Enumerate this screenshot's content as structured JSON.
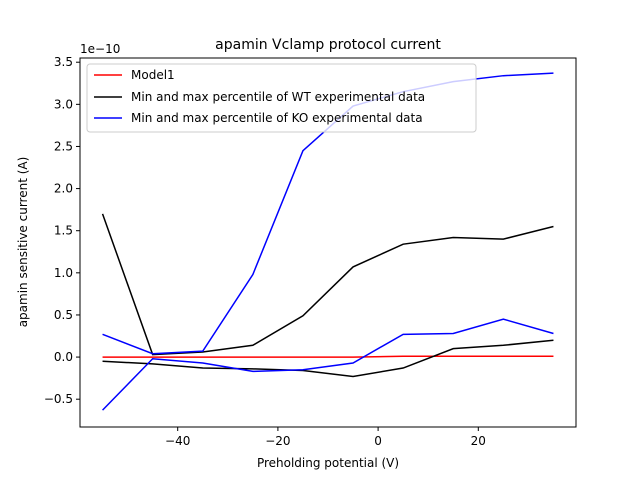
{
  "chart_data": {
    "type": "line",
    "title": "apamin Vclamp protocol current",
    "xlabel": "Preholding potential (V)",
    "ylabel": "apamin sensitive current (A)",
    "y_offset_label": "1e−10",
    "xlim": [
      -59.5,
      39.5
    ],
    "ylim": [
      -0.83,
      3.55
    ],
    "ylim_scale": "1e-10",
    "x_ticks": [
      -40,
      -20,
      0,
      20
    ],
    "x_tick_labels": [
      "−40",
      "−20",
      "0",
      "20"
    ],
    "y_ticks": [
      -0.5,
      0.0,
      0.5,
      1.0,
      1.5,
      2.0,
      2.5,
      3.0,
      3.5
    ],
    "y_tick_labels": [
      "−0.5",
      "0.0",
      "0.5",
      "1.0",
      "1.5",
      "2.0",
      "2.5",
      "3.0",
      "3.5"
    ],
    "grid": false,
    "legend_position": "top-left",
    "legend": [
      {
        "label": "Model1",
        "color": "#ff0000"
      },
      {
        "label": "Min and max percentile of WT experimental data",
        "color": "#000000"
      },
      {
        "label": "Min and max percentile of KO experimental data",
        "color": "#0000ff"
      }
    ],
    "series": [
      {
        "name": "Model1",
        "color": "#ff0000",
        "x": [
          -55,
          -45,
          -35,
          -25,
          -15,
          -5,
          5,
          15,
          25,
          35
        ],
        "y": [
          0.0,
          0.0,
          0.0,
          0.0,
          0.0,
          0.0,
          0.01,
          0.01,
          0.01,
          0.01
        ]
      },
      {
        "name": "Min and max percentile of WT experimental data",
        "color": "#000000",
        "x": [
          -55,
          -45,
          -35,
          -25,
          -15,
          -5,
          5,
          15,
          25,
          35
        ],
        "y": [
          1.7,
          0.03,
          0.06,
          0.14,
          0.49,
          1.07,
          1.34,
          1.42,
          1.4,
          1.55
        ]
      },
      {
        "color": "#000000",
        "x": [
          -55,
          -45,
          -35,
          -25,
          -15,
          -5,
          5,
          15,
          25,
          35
        ],
        "y": [
          -0.05,
          -0.08,
          -0.13,
          -0.14,
          -0.16,
          -0.23,
          -0.13,
          0.1,
          0.14,
          0.2
        ]
      },
      {
        "name": "Min and max percentile of KO experimental data",
        "color": "#0000ff",
        "x": [
          -55,
          -45,
          -35,
          -25,
          -15,
          -5,
          5,
          15,
          25,
          35
        ],
        "y": [
          0.27,
          0.04,
          0.07,
          0.98,
          2.45,
          2.98,
          3.15,
          3.27,
          3.34,
          3.37
        ]
      },
      {
        "color": "#0000ff",
        "x": [
          -55,
          -45,
          -35,
          -25,
          -15,
          -5,
          5,
          15,
          25,
          35
        ],
        "y": [
          -0.63,
          -0.02,
          -0.07,
          -0.17,
          -0.15,
          -0.07,
          0.27,
          0.28,
          0.45,
          0.28
        ]
      }
    ]
  }
}
